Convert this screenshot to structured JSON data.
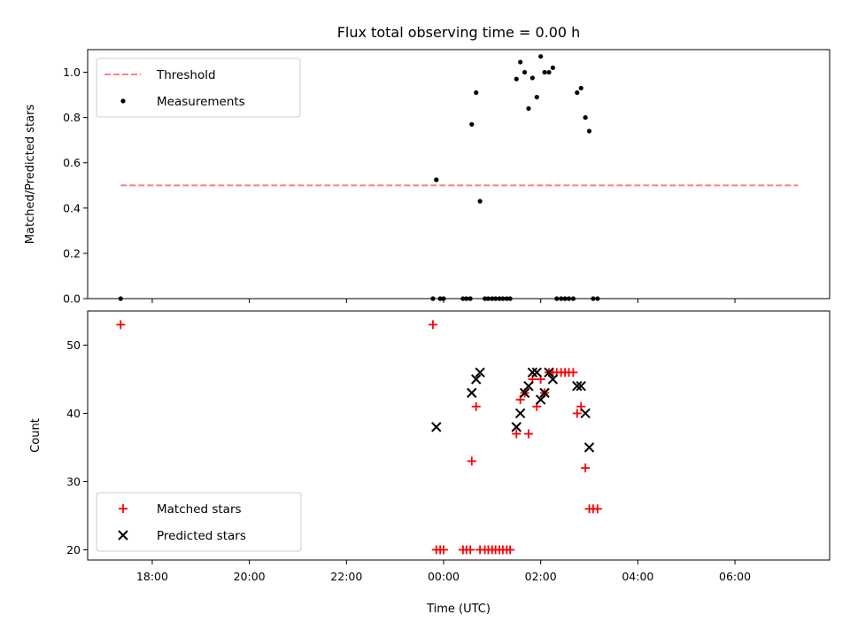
{
  "chart_data": [
    {
      "type": "scatter",
      "title": "Flux total observing time = 0.00 h",
      "xlabel": "",
      "ylabel": "Matched/Predicted stars",
      "xlim": [
        16.67,
        31.95
      ],
      "ylim": [
        0.0,
        1.1
      ],
      "yticks": [
        0.0,
        0.2,
        0.4,
        0.6,
        0.8,
        1.0
      ],
      "ytick_labels": [
        "0.0",
        "0.2",
        "0.4",
        "0.6",
        "0.8",
        "1.0"
      ],
      "legend_position": "top-left",
      "threshold": {
        "name": "Threshold",
        "value": 0.5,
        "x_range": [
          17.35,
          31.3
        ],
        "color": "#ff7f7f"
      },
      "series": [
        {
          "name": "Measurements",
          "color": "#000000",
          "x": [
            17.35,
            23.78,
            23.85,
            23.93,
            24.0,
            24.4,
            24.47,
            24.55,
            24.58,
            24.67,
            24.75,
            24.85,
            24.92,
            25.0,
            25.07,
            25.15,
            25.22,
            25.3,
            25.37,
            25.5,
            25.58,
            25.67,
            25.75,
            25.83,
            25.92,
            26.0,
            26.08,
            26.17,
            26.25,
            26.33,
            26.42,
            26.5,
            26.58,
            26.67,
            26.75,
            26.83,
            26.92,
            27.0,
            27.08,
            27.17
          ],
          "y": [
            0.0,
            0.0,
            0.525,
            0.0,
            0.0,
            0.0,
            0.0,
            0.0,
            0.77,
            0.91,
            0.43,
            0.0,
            0.0,
            0.0,
            0.0,
            0.0,
            0.0,
            0.0,
            0.0,
            0.97,
            1.045,
            1.0,
            0.84,
            0.975,
            0.89,
            1.07,
            1.0,
            1.0,
            1.02,
            0.0,
            0.0,
            0.0,
            0.0,
            0.0,
            0.91,
            0.93,
            0.8,
            0.74,
            0.0,
            0.0
          ]
        }
      ]
    },
    {
      "type": "scatter",
      "title": "",
      "xlabel": "Time (UTC)",
      "ylabel": "Count",
      "xlim": [
        16.67,
        31.95
      ],
      "ylim": [
        18.5,
        55.0
      ],
      "yticks": [
        20,
        30,
        40,
        50
      ],
      "ytick_labels": [
        "20",
        "30",
        "40",
        "50"
      ],
      "xticks": [
        18,
        20,
        22,
        24,
        26,
        28,
        30
      ],
      "xtick_labels": [
        "18:00",
        "20:00",
        "22:00",
        "00:00",
        "02:00",
        "04:00",
        "06:00"
      ],
      "legend_position": "bottom-left",
      "series": [
        {
          "name": "Matched stars",
          "marker": "+",
          "color": "#ff0000",
          "x": [
            17.35,
            23.78,
            23.85,
            23.93,
            24.0,
            24.4,
            24.47,
            24.55,
            24.58,
            24.67,
            24.75,
            24.85,
            24.92,
            25.0,
            25.07,
            25.15,
            25.22,
            25.3,
            25.37,
            25.5,
            25.58,
            25.67,
            25.75,
            25.83,
            25.92,
            26.0,
            26.08,
            26.17,
            26.25,
            26.33,
            26.42,
            26.5,
            26.58,
            26.67,
            26.75,
            26.83,
            26.92,
            27.0,
            27.08,
            27.17
          ],
          "y": [
            53,
            53,
            20,
            20,
            20,
            20,
            20,
            20,
            33,
            41,
            20,
            20,
            20,
            20,
            20,
            20,
            20,
            20,
            20,
            37,
            42,
            43,
            37,
            45,
            41,
            45,
            43,
            46,
            46,
            46,
            46,
            46,
            46,
            46,
            40,
            41,
            32,
            26,
            26,
            26
          ]
        },
        {
          "name": "Predicted stars",
          "marker": "x",
          "color": "#000000",
          "x": [
            23.85,
            24.58,
            24.67,
            24.75,
            25.5,
            25.58,
            25.67,
            25.75,
            25.83,
            25.92,
            26.0,
            26.08,
            26.17,
            26.25,
            26.75,
            26.83,
            26.92,
            27.0
          ],
          "y": [
            38,
            43,
            45,
            46,
            38,
            40,
            43,
            44,
            46,
            46,
            42,
            43,
            46,
            45,
            44,
            44,
            40,
            35
          ]
        }
      ]
    }
  ]
}
